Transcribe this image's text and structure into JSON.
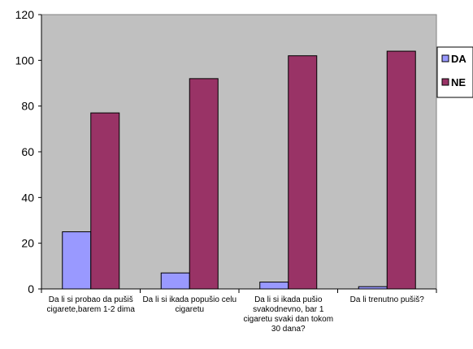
{
  "chart_data": {
    "type": "bar",
    "title": "",
    "xlabel": "",
    "ylabel": "",
    "ylim": [
      0,
      120
    ],
    "yticks": [
      0,
      20,
      40,
      60,
      80,
      100,
      120
    ],
    "grid": false,
    "legend_position": "right",
    "plot_background": "#c0c0c0",
    "categories": [
      [
        "Da li si probao da pušiš",
        "cigarete,barem 1-2 dima"
      ],
      [
        "Da li si ikada popušio celu",
        "cigaretu"
      ],
      [
        "Da li si ikada pušio",
        "svakodnevno, bar 1",
        "cigaretu svaki dan tokom",
        "30 dana?"
      ],
      [
        "Da li trenutno pušiš?"
      ]
    ],
    "series": [
      {
        "name": "DA",
        "color": "#9999ff",
        "values": [
          25,
          7,
          3,
          1
        ]
      },
      {
        "name": "NE",
        "color": "#993366",
        "values": [
          77,
          92,
          102,
          104
        ]
      }
    ]
  }
}
